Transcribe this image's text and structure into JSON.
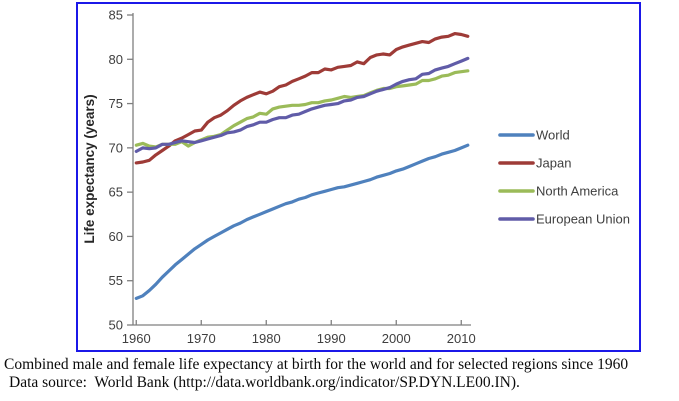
{
  "caption": {
    "line1": "Combined male and female life expectancy at birth for the world and for selected regions since 1960",
    "line2": "Data source:  World Bank (http://data.worldbank.org/indicator/SP.DYN.LE00.IN)."
  },
  "frame": {
    "border_color": "#1b18e8",
    "background": "#ffffff"
  },
  "chart_data": {
    "type": "line",
    "title": "",
    "xlabel": "",
    "ylabel": "Life expectancy (years)",
    "x_start": 1960,
    "x_end": 2011,
    "xticks": [
      1960,
      1970,
      1980,
      1990,
      2000,
      2010
    ],
    "yticks": [
      50,
      55,
      60,
      65,
      70,
      75,
      80,
      85
    ],
    "ylim": [
      50,
      85
    ],
    "grid": false,
    "legend_position": "right-inside",
    "axis_color": "#7f7f7f",
    "label_color": "#3f3f3f",
    "series": [
      {
        "name": "World",
        "color": "#4f81bd",
        "values": [
          53.0,
          53.3,
          53.9,
          54.6,
          55.4,
          56.1,
          56.8,
          57.4,
          58.0,
          58.6,
          59.1,
          59.6,
          60.0,
          60.4,
          60.8,
          61.2,
          61.5,
          61.9,
          62.2,
          62.5,
          62.8,
          63.1,
          63.4,
          63.7,
          63.9,
          64.2,
          64.4,
          64.7,
          64.9,
          65.1,
          65.3,
          65.5,
          65.6,
          65.8,
          66.0,
          66.2,
          66.4,
          66.7,
          66.9,
          67.1,
          67.4,
          67.6,
          67.9,
          68.2,
          68.5,
          68.8,
          69.0,
          69.3,
          69.5,
          69.7,
          70.0,
          70.3
        ]
      },
      {
        "name": "Japan",
        "color": "#9e3b37",
        "values": [
          68.3,
          68.4,
          68.6,
          69.2,
          69.7,
          70.2,
          70.8,
          71.1,
          71.5,
          71.9,
          72.0,
          72.9,
          73.4,
          73.7,
          74.2,
          74.8,
          75.3,
          75.7,
          76.0,
          76.3,
          76.1,
          76.4,
          76.9,
          77.1,
          77.5,
          77.8,
          78.1,
          78.5,
          78.5,
          78.9,
          78.8,
          79.1,
          79.2,
          79.3,
          79.7,
          79.5,
          80.2,
          80.5,
          80.6,
          80.5,
          81.1,
          81.4,
          81.6,
          81.8,
          82.0,
          81.9,
          82.3,
          82.5,
          82.6,
          82.9,
          82.8,
          82.6
        ]
      },
      {
        "name": "North America",
        "color": "#9bbb59",
        "values": [
          70.3,
          70.5,
          70.2,
          70.1,
          70.4,
          70.4,
          70.4,
          70.7,
          70.2,
          70.6,
          70.9,
          71.2,
          71.3,
          71.5,
          72.0,
          72.5,
          72.9,
          73.3,
          73.5,
          73.9,
          73.8,
          74.4,
          74.6,
          74.7,
          74.8,
          74.8,
          74.9,
          75.1,
          75.1,
          75.3,
          75.4,
          75.6,
          75.8,
          75.7,
          75.8,
          75.9,
          76.2,
          76.5,
          76.7,
          76.7,
          76.9,
          77.0,
          77.1,
          77.2,
          77.6,
          77.6,
          77.8,
          78.1,
          78.2,
          78.5,
          78.6,
          78.7
        ]
      },
      {
        "name": "European Union",
        "color": "#605ca8",
        "values": [
          69.6,
          70.0,
          69.9,
          70.0,
          70.4,
          70.4,
          70.6,
          70.8,
          70.7,
          70.6,
          70.8,
          71.0,
          71.2,
          71.4,
          71.7,
          71.8,
          72.0,
          72.4,
          72.6,
          72.9,
          72.9,
          73.2,
          73.4,
          73.4,
          73.7,
          73.8,
          74.1,
          74.4,
          74.6,
          74.8,
          74.9,
          75.0,
          75.3,
          75.4,
          75.7,
          75.8,
          76.1,
          76.4,
          76.6,
          76.8,
          77.2,
          77.5,
          77.7,
          77.8,
          78.3,
          78.4,
          78.8,
          79.0,
          79.2,
          79.5,
          79.8,
          80.1
        ]
      }
    ]
  }
}
